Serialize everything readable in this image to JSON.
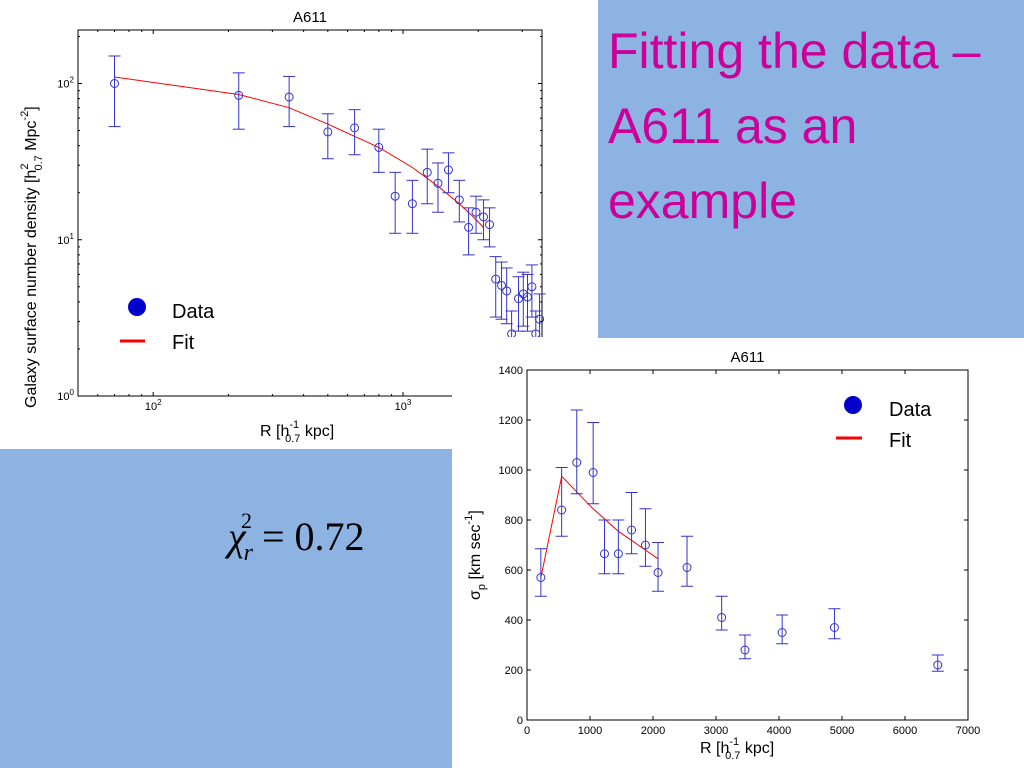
{
  "slide": {
    "title": "Fitting the data – A611 as an example",
    "chi_symbol": "χ",
    "chi_sub": "r",
    "chi_sup": "2",
    "chi_rest": " = 0.72",
    "colors": {
      "background": "#8db3e2",
      "title": "#cc0099",
      "data": "#3333cc",
      "fit": "#ff0000"
    }
  },
  "chart_data": [
    {
      "type": "scatter",
      "title": "A611",
      "xlabel": "R [h^-1_0.7 kpc]",
      "ylabel": "Galaxy surface number density [h^2_0.7 Mpc^-2]",
      "xscale": "log",
      "yscale": "log",
      "xlim": [
        50,
        3600
      ],
      "ylim": [
        1,
        220
      ],
      "x_ticks": [
        {
          "v": 100,
          "label": "10^2"
        },
        {
          "v": 1000,
          "label": "10^3"
        }
      ],
      "y_ticks": [
        {
          "v": 1,
          "label": "10^0"
        },
        {
          "v": 10,
          "label": "10^1"
        },
        {
          "v": 100,
          "label": "10^2"
        }
      ],
      "legend": {
        "position": "bottom-left",
        "entries": [
          "Data",
          "Fit"
        ]
      },
      "series": [
        {
          "name": "Data",
          "points": [
            {
              "x": 70,
              "y": 100,
              "lo": 53,
              "hi": 150
            },
            {
              "x": 220,
              "y": 84,
              "lo": 51,
              "hi": 117
            },
            {
              "x": 350,
              "y": 82,
              "lo": 53,
              "hi": 111
            },
            {
              "x": 500,
              "y": 49,
              "lo": 33,
              "hi": 64
            },
            {
              "x": 640,
              "y": 52,
              "lo": 35,
              "hi": 68
            },
            {
              "x": 800,
              "y": 39,
              "lo": 27,
              "hi": 51
            },
            {
              "x": 930,
              "y": 19,
              "lo": 11,
              "hi": 27
            },
            {
              "x": 1090,
              "y": 17,
              "lo": 11,
              "hi": 24
            },
            {
              "x": 1250,
              "y": 27,
              "lo": 17,
              "hi": 38
            },
            {
              "x": 1380,
              "y": 23,
              "lo": 15,
              "hi": 31
            },
            {
              "x": 1520,
              "y": 28,
              "lo": 20,
              "hi": 36
            },
            {
              "x": 1680,
              "y": 18,
              "lo": 13,
              "hi": 24
            },
            {
              "x": 1830,
              "y": 12,
              "lo": 8,
              "hi": 16
            },
            {
              "x": 1960,
              "y": 15,
              "lo": 11,
              "hi": 19
            },
            {
              "x": 2100,
              "y": 14,
              "lo": 10,
              "hi": 18
            },
            {
              "x": 2220,
              "y": 12.5,
              "lo": 9,
              "hi": 16
            },
            {
              "x": 2350,
              "y": 5.6,
              "lo": 3.2,
              "hi": 7.8
            },
            {
              "x": 2480,
              "y": 5.1,
              "lo": 3.1,
              "hi": 7.2
            },
            {
              "x": 2600,
              "y": 4.7,
              "lo": 2.9,
              "hi": 6.6
            },
            {
              "x": 2720,
              "y": 2.5,
              "lo": 1.5,
              "hi": 3.5
            },
            {
              "x": 2900,
              "y": 4.2,
              "lo": 2.6,
              "hi": 5.8
            },
            {
              "x": 3030,
              "y": 4.5,
              "lo": 2.8,
              "hi": 6.2
            },
            {
              "x": 3150,
              "y": 4.3,
              "lo": 2.6,
              "hi": 6
            },
            {
              "x": 3280,
              "y": 5,
              "lo": 3.2,
              "hi": 6.9
            },
            {
              "x": 3400,
              "y": 2.5,
              "lo": 1.5,
              "hi": 3.5
            },
            {
              "x": 3520,
              "y": 3.1,
              "lo": 1.9,
              "hi": 4.5
            }
          ]
        },
        {
          "name": "Fit",
          "points": [
            {
              "x": 70,
              "y": 110
            },
            {
              "x": 220,
              "y": 85
            },
            {
              "x": 350,
              "y": 70
            },
            {
              "x": 500,
              "y": 55
            },
            {
              "x": 800,
              "y": 39
            },
            {
              "x": 1090,
              "y": 29
            },
            {
              "x": 1380,
              "y": 22
            },
            {
              "x": 1680,
              "y": 17
            },
            {
              "x": 1960,
              "y": 13.5
            },
            {
              "x": 2100,
              "y": 12
            }
          ]
        }
      ]
    },
    {
      "type": "scatter",
      "title": "A611",
      "xlabel": "R [h^-1_0.7 kpc]",
      "ylabel": "σ_p [km sec^-1]",
      "xscale": "linear",
      "yscale": "linear",
      "xlim": [
        0,
        7000
      ],
      "ylim": [
        0,
        1400
      ],
      "x_ticks": [
        {
          "v": 0,
          "label": "0"
        },
        {
          "v": 1000,
          "label": "1000"
        },
        {
          "v": 2000,
          "label": "2000"
        },
        {
          "v": 3000,
          "label": "3000"
        },
        {
          "v": 4000,
          "label": "4000"
        },
        {
          "v": 5000,
          "label": "5000"
        },
        {
          "v": 6000,
          "label": "6000"
        },
        {
          "v": 7000,
          "label": "7000"
        }
      ],
      "y_ticks": [
        {
          "v": 0,
          "label": "0"
        },
        {
          "v": 200,
          "label": "200"
        },
        {
          "v": 400,
          "label": "400"
        },
        {
          "v": 600,
          "label": "600"
        },
        {
          "v": 800,
          "label": "800"
        },
        {
          "v": 1000,
          "label": "1000"
        },
        {
          "v": 1200,
          "label": "1200"
        },
        {
          "v": 1400,
          "label": "1400"
        }
      ],
      "legend": {
        "position": "top-right",
        "entries": [
          "Data",
          "Fit"
        ]
      },
      "series": [
        {
          "name": "Data",
          "points": [
            {
              "x": 220,
              "y": 570,
              "lo": 495,
              "hi": 685
            },
            {
              "x": 550,
              "y": 840,
              "lo": 735,
              "hi": 1010
            },
            {
              "x": 790,
              "y": 1030,
              "lo": 905,
              "hi": 1240
            },
            {
              "x": 1050,
              "y": 990,
              "lo": 865,
              "hi": 1190
            },
            {
              "x": 1230,
              "y": 665,
              "lo": 585,
              "hi": 800
            },
            {
              "x": 1450,
              "y": 665,
              "lo": 585,
              "hi": 800
            },
            {
              "x": 1660,
              "y": 760,
              "lo": 665,
              "hi": 910
            },
            {
              "x": 1880,
              "y": 700,
              "lo": 615,
              "hi": 845
            },
            {
              "x": 2080,
              "y": 590,
              "lo": 515,
              "hi": 710
            },
            {
              "x": 2540,
              "y": 610,
              "lo": 535,
              "hi": 735
            },
            {
              "x": 3090,
              "y": 410,
              "lo": 360,
              "hi": 495
            },
            {
              "x": 3460,
              "y": 280,
              "lo": 245,
              "hi": 340
            },
            {
              "x": 4050,
              "y": 350,
              "lo": 305,
              "hi": 420
            },
            {
              "x": 4880,
              "y": 370,
              "lo": 325,
              "hi": 445
            },
            {
              "x": 6520,
              "y": 220,
              "lo": 195,
              "hi": 260
            }
          ]
        },
        {
          "name": "Fit",
          "points": [
            {
              "x": 220,
              "y": 570
            },
            {
              "x": 550,
              "y": 975
            },
            {
              "x": 1050,
              "y": 845
            },
            {
              "x": 1450,
              "y": 755
            },
            {
              "x": 2080,
              "y": 645
            }
          ]
        }
      ]
    }
  ]
}
